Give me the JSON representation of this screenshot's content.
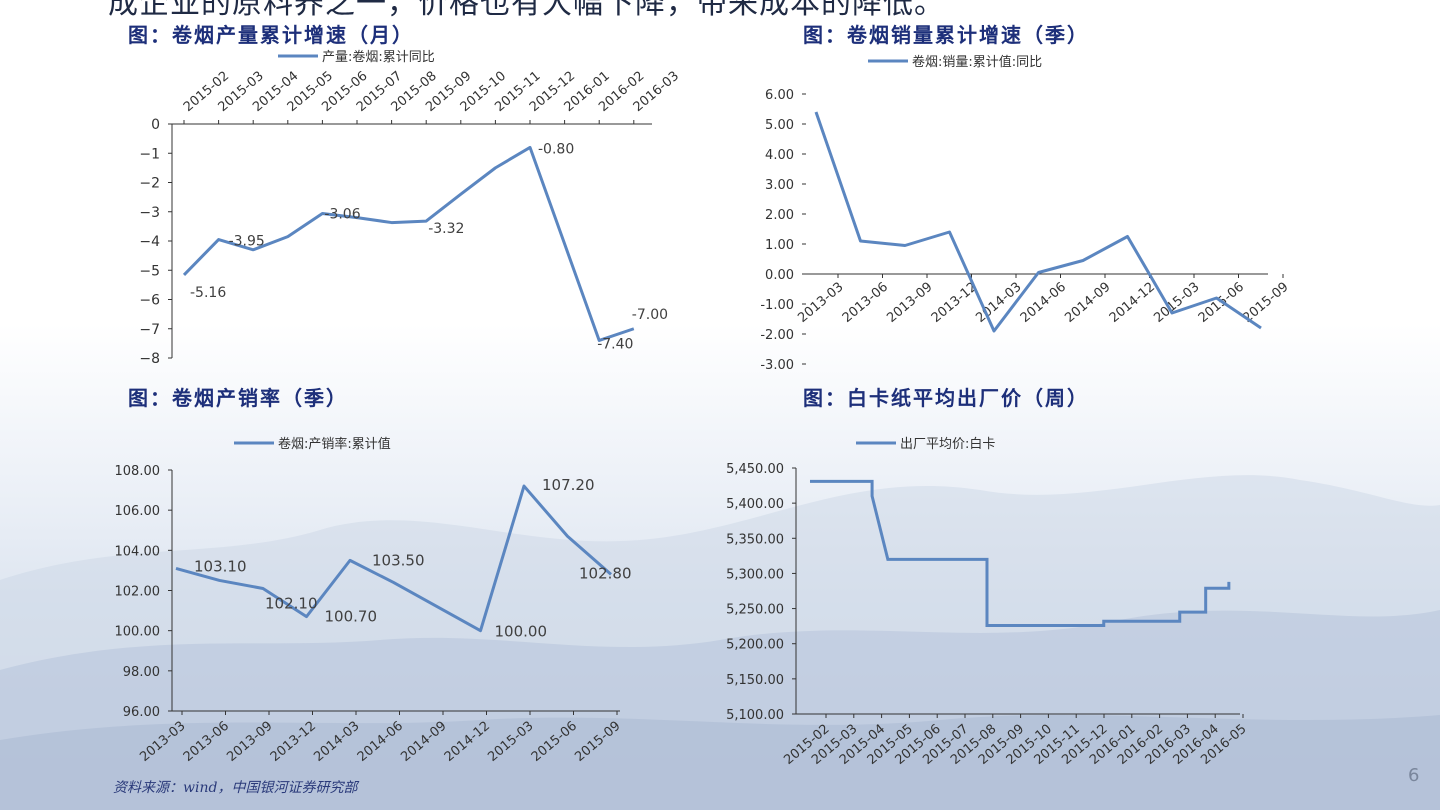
{
  "header": {
    "cut_text": "成企业的原料养之一，价格也有大幅下降，带来成本的降低。"
  },
  "figures": {
    "fig1_title": "图：卷烟产量累计增速（月）",
    "fig2_title": "图：卷烟销量累计增速（季）",
    "fig3_title": "图：卷烟产销率（季）",
    "fig4_title": "图：白卡纸平均出厂价（周）"
  },
  "footer": {
    "source": "资料来源：wind，中国银河证券研究部",
    "page_number": "6"
  },
  "colors": {
    "series": "#5b86c0",
    "title": "#1d2f7a",
    "axis": "#333333"
  },
  "chart_data": [
    {
      "type": "line",
      "title": "图：卷烟产量累计增速（月）",
      "legend": "产量:卷烟:累计同比",
      "legend_position": "top",
      "x_axis_position": "top",
      "categories": [
        "2015-02",
        "2015-03",
        "2015-04",
        "2015-05",
        "2015-06",
        "2015-07",
        "2015-08",
        "2015-09",
        "2015-10",
        "2015-11",
        "2015-12",
        "2016-01",
        "2016-02",
        "2016-03"
      ],
      "values": [
        -5.16,
        -3.95,
        -4.3,
        -3.85,
        -3.06,
        -3.2,
        -3.37,
        -3.32,
        -2.4,
        -1.5,
        -0.8,
        -4.1,
        -7.4,
        -7.0
      ],
      "data_labels": [
        {
          "i": 0,
          "text": "-5.16"
        },
        {
          "i": 1,
          "text": "-3.95"
        },
        {
          "i": 4,
          "text": "-3.06"
        },
        {
          "i": 7,
          "text": "-3.32"
        },
        {
          "i": 10,
          "text": "-0.80"
        },
        {
          "i": 12,
          "text": "-7.40"
        },
        {
          "i": 13,
          "text": "-7.00"
        }
      ],
      "yticks": [
        "0",
        "−1",
        "−2",
        "−3",
        "−4",
        "−5",
        "−6",
        "−7",
        "−8"
      ],
      "ylim": [
        -8,
        0
      ]
    },
    {
      "type": "line",
      "title": "图：卷烟销量累计增速（季）",
      "legend": "卷烟:销量:累计值:同比",
      "legend_position": "top",
      "categories": [
        "2013-03",
        "2013-06",
        "2013-09",
        "2013-12",
        "2014-03",
        "2014-06",
        "2014-09",
        "2014-12",
        "2015-03",
        "2015-06",
        "2015-09"
      ],
      "values": [
        5.4,
        1.1,
        0.95,
        1.4,
        -1.9,
        0.05,
        0.45,
        1.25,
        -1.3,
        -0.8,
        -1.8
      ],
      "yticks": [
        "6.00",
        "5.00",
        "4.00",
        "3.00",
        "2.00",
        "1.00",
        "0.00",
        "-1.00",
        "-2.00",
        "-3.00"
      ],
      "ylim": [
        -3,
        6
      ]
    },
    {
      "type": "line",
      "title": "图：卷烟产销率（季）",
      "legend": "卷烟:产销率:累计值",
      "legend_position": "top",
      "categories": [
        "2013-03",
        "2013-06",
        "2013-09",
        "2013-12",
        "2014-03",
        "2014-06",
        "2014-09",
        "2014-12",
        "2015-03",
        "2015-06",
        "2015-09"
      ],
      "values": [
        103.1,
        102.5,
        102.1,
        100.7,
        103.5,
        102.4,
        101.2,
        100.0,
        107.2,
        104.7,
        102.8
      ],
      "data_labels": [
        {
          "i": 0,
          "text": "103.10"
        },
        {
          "i": 2,
          "text": "102.10"
        },
        {
          "i": 3,
          "text": "100.70"
        },
        {
          "i": 4,
          "text": "103.50"
        },
        {
          "i": 7,
          "text": "100.00"
        },
        {
          "i": 8,
          "text": "107.20"
        },
        {
          "i": 10,
          "text": "102.80"
        }
      ],
      "yticks": [
        "108.00",
        "106.00",
        "104.00",
        "102.00",
        "100.00",
        "98.00",
        "96.00"
      ],
      "ylim": [
        96,
        108
      ]
    },
    {
      "type": "line",
      "step": true,
      "title": "图：白卡纸平均出厂价（周）",
      "legend": "出厂平均价:白卡",
      "legend_position": "top",
      "categories": [
        "2015-02",
        "2015-03",
        "2015-04",
        "2015-05",
        "2015-06",
        "2015-07",
        "2015-08",
        "2015-09",
        "2015-10",
        "2015-11",
        "2015-12",
        "2016-01",
        "2016-02",
        "2016-03",
        "2016-04",
        "2016-05"
      ],
      "points": [
        [
          "2015-02-01",
          5431
        ],
        [
          "2015-04-08",
          5431
        ],
        [
          "2015-04-08",
          5410
        ],
        [
          "2015-04-25",
          5320
        ],
        [
          "2015-08-12",
          5320
        ],
        [
          "2015-08-12",
          5226
        ],
        [
          "2015-12-18",
          5226
        ],
        [
          "2015-12-18",
          5232
        ],
        [
          "2016-03-10",
          5232
        ],
        [
          "2016-03-10",
          5245
        ],
        [
          "2016-04-08",
          5245
        ],
        [
          "2016-04-08",
          5279
        ],
        [
          "2016-05-03",
          5279
        ],
        [
          "2016-05-03",
          5288
        ]
      ],
      "yticks": [
        "5,450.00",
        "5,400.00",
        "5,350.00",
        "5,300.00",
        "5,250.00",
        "5,200.00",
        "5,150.00",
        "5,100.00"
      ],
      "ylim": [
        5100,
        5450
      ]
    }
  ]
}
